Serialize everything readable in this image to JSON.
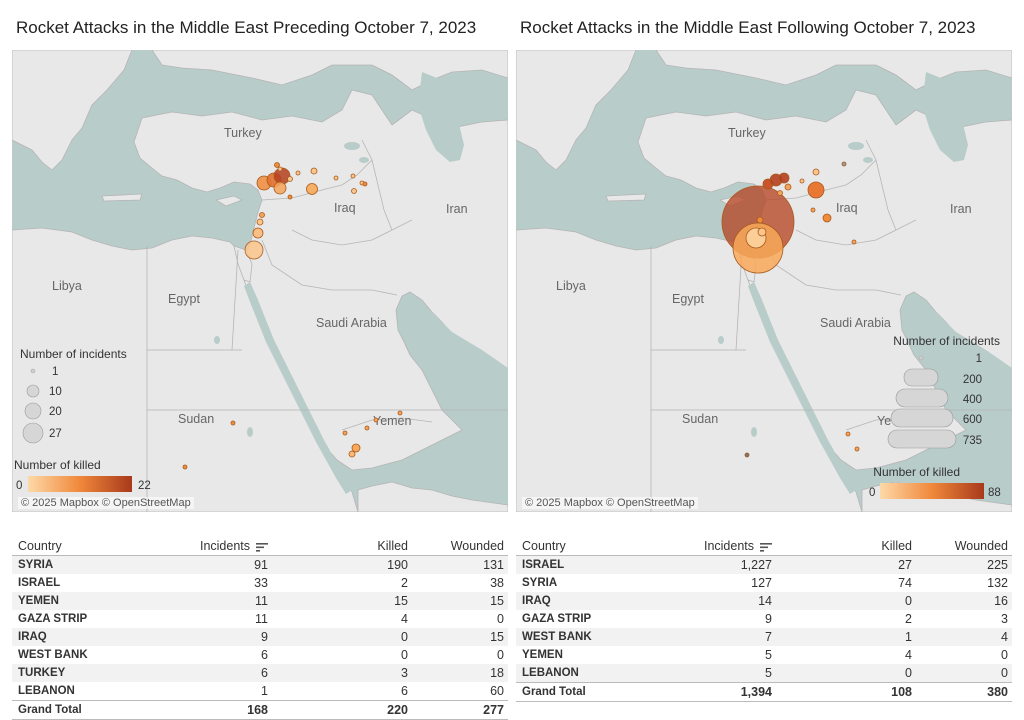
{
  "panels": [
    {
      "title": "Rocket Attacks in the Middle East Preceding October 7, 2023",
      "map_labels": {
        "turkey": "Turkey",
        "iraq": "Iraq",
        "iran": "Iran",
        "libya": "Libya",
        "egypt": "Egypt",
        "saudi": "Saudi Arabia",
        "sudan": "Sudan",
        "yemen": "Yemen"
      },
      "legend": {
        "size_title": "Number of incidents",
        "size_values": [
          "1",
          "10",
          "20",
          "27"
        ],
        "color_title": "Number of killed",
        "color_min": "0",
        "color_max": "22"
      },
      "attribution": "© 2025 Mapbox © OpenStreetMap",
      "table": {
        "headers": {
          "country": "Country",
          "incidents": "Incidents",
          "killed": "Killed",
          "wounded": "Wounded"
        },
        "rows": [
          {
            "country": "SYRIA",
            "incidents": "91",
            "killed": "190",
            "wounded": "131"
          },
          {
            "country": "ISRAEL",
            "incidents": "33",
            "killed": "2",
            "wounded": "38"
          },
          {
            "country": "YEMEN",
            "incidents": "11",
            "killed": "15",
            "wounded": "15"
          },
          {
            "country": "GAZA STRIP",
            "incidents": "11",
            "killed": "4",
            "wounded": "0"
          },
          {
            "country": "IRAQ",
            "incidents": "9",
            "killed": "0",
            "wounded": "15"
          },
          {
            "country": "WEST BANK",
            "incidents": "6",
            "killed": "0",
            "wounded": "0"
          },
          {
            "country": "TURKEY",
            "incidents": "6",
            "killed": "3",
            "wounded": "18"
          },
          {
            "country": "LEBANON",
            "incidents": "1",
            "killed": "6",
            "wounded": "60"
          }
        ],
        "total": {
          "country": "Grand Total",
          "incidents": "168",
          "killed": "220",
          "wounded": "277"
        }
      }
    },
    {
      "title": "Rocket Attacks in the Middle East Following October 7, 2023",
      "map_labels": {
        "turkey": "Turkey",
        "iraq": "Iraq",
        "iran": "Iran",
        "libya": "Libya",
        "egypt": "Egypt",
        "saudi": "Saudi Arabia",
        "sudan": "Sudan",
        "yemen": "Ye"
      },
      "legend": {
        "size_title": "Number of incidents",
        "size_values": [
          "1",
          "200",
          "400",
          "600",
          "735"
        ],
        "color_title": "Number of killed",
        "color_min": "0",
        "color_max": "88"
      },
      "attribution": "© 2025 Mapbox © OpenStreetMap",
      "table": {
        "headers": {
          "country": "Country",
          "incidents": "Incidents",
          "killed": "Killed",
          "wounded": "Wounded"
        },
        "rows": [
          {
            "country": "ISRAEL",
            "incidents": "1,227",
            "killed": "27",
            "wounded": "225"
          },
          {
            "country": "SYRIA",
            "incidents": "127",
            "killed": "74",
            "wounded": "132"
          },
          {
            "country": "IRAQ",
            "incidents": "14",
            "killed": "0",
            "wounded": "16"
          },
          {
            "country": "GAZA STRIP",
            "incidents": "9",
            "killed": "2",
            "wounded": "3"
          },
          {
            "country": "WEST BANK",
            "incidents": "7",
            "killed": "1",
            "wounded": "4"
          },
          {
            "country": "YEMEN",
            "incidents": "5",
            "killed": "4",
            "wounded": "0"
          },
          {
            "country": "LEBANON",
            "incidents": "5",
            "killed": "0",
            "wounded": "0"
          }
        ],
        "total": {
          "country": "Grand Total",
          "incidents": "1,394",
          "killed": "108",
          "wounded": "380"
        }
      }
    }
  ],
  "colors": {
    "water": "#b8ccc9",
    "land": "#e8e8e8",
    "border": "#b5b5b5",
    "marker_light": "#fcc68a",
    "marker_mid": "#f08b3a",
    "marker_dark": "#b4401e",
    "legend_circle": "#d6d6d6"
  }
}
